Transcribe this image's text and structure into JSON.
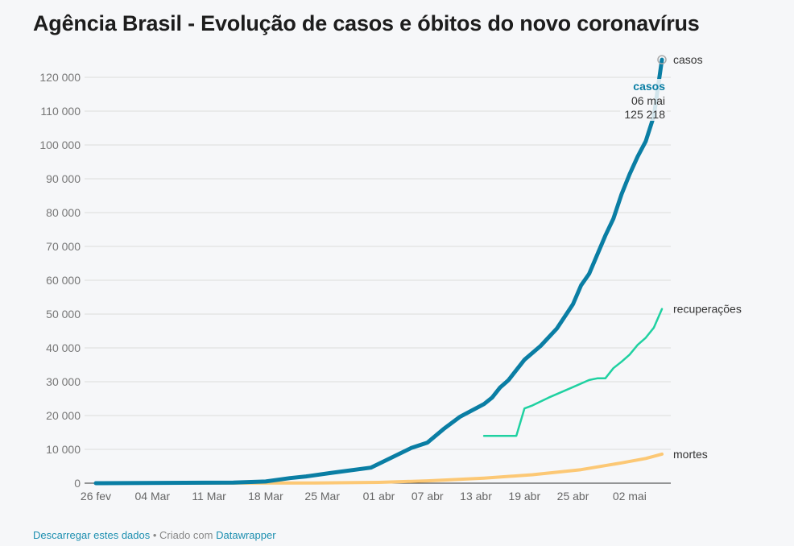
{
  "chart_data": {
    "type": "line",
    "title": "Agência Brasil - Evolução de casos e óbitos do novo coronavírus",
    "xlabel": "",
    "ylabel": "",
    "ylim": [
      0,
      120000
    ],
    "yticks": [
      0,
      10000,
      20000,
      30000,
      40000,
      50000,
      60000,
      70000,
      80000,
      90000,
      100000,
      110000,
      120000
    ],
    "ytick_labels": [
      "0",
      "10 000",
      "20 000",
      "30 000",
      "40 000",
      "50 000",
      "60 000",
      "70 000",
      "80 000",
      "90 000",
      "100 000",
      "110 000",
      "120 000"
    ],
    "xlim": [
      "2020-02-26",
      "2020-05-06"
    ],
    "xticks": [
      "2020-02-26",
      "2020-03-04",
      "2020-03-11",
      "2020-03-18",
      "2020-03-25",
      "2020-04-01",
      "2020-04-07",
      "2020-04-13",
      "2020-04-19",
      "2020-04-25",
      "2020-05-02"
    ],
    "xtick_labels": [
      "26 fev",
      "04 Mar",
      "11 Mar",
      "18 Mar",
      "25 Mar",
      "01 abr",
      "07 abr",
      "13 abr",
      "19 abr",
      "25 abr",
      "02 mai"
    ],
    "grid": true,
    "series": [
      {
        "name": "casos",
        "color": "#0a7ea4",
        "x": [
          "2020-02-26",
          "2020-03-14",
          "2020-03-18",
          "2020-03-21",
          "2020-03-23",
          "2020-03-26",
          "2020-03-31",
          "2020-04-05",
          "2020-04-07",
          "2020-04-09",
          "2020-04-11",
          "2020-04-14",
          "2020-04-15",
          "2020-04-16",
          "2020-04-17",
          "2020-04-19",
          "2020-04-21",
          "2020-04-23",
          "2020-04-25",
          "2020-04-26",
          "2020-04-27",
          "2020-04-29",
          "2020-04-30",
          "2020-05-01",
          "2020-05-02",
          "2020-05-03",
          "2020-05-04",
          "2020-05-05",
          "2020-05-06"
        ],
        "y": [
          0,
          200,
          500,
          1500,
          2000,
          3000,
          4600,
          10400,
          12000,
          16000,
          19600,
          23400,
          25300,
          28300,
          30400,
          36500,
          40600,
          45700,
          52900,
          58500,
          61900,
          73200,
          78200,
          85400,
          91300,
          96600,
          101100,
          108600,
          125218
        ]
      },
      {
        "name": "recuperações",
        "color": "#1fd1a1",
        "x": [
          "2020-04-14",
          "2020-04-18",
          "2020-04-19",
          "2020-04-20",
          "2020-04-22",
          "2020-04-25",
          "2020-04-27",
          "2020-04-28",
          "2020-04-29",
          "2020-04-30",
          "2020-05-01",
          "2020-05-02",
          "2020-05-03",
          "2020-05-04",
          "2020-05-05",
          "2020-05-06"
        ],
        "y": [
          14000,
          14000,
          22100,
          23000,
          25300,
          28400,
          30500,
          31000,
          31000,
          34000,
          35900,
          38000,
          40900,
          43000,
          46000,
          51500
        ]
      },
      {
        "name": "mortes",
        "color": "#fcc875",
        "x": [
          "2020-02-26",
          "2020-03-24",
          "2020-04-01",
          "2020-04-07",
          "2020-04-14",
          "2020-04-20",
          "2020-04-26",
          "2020-05-01",
          "2020-05-04",
          "2020-05-06"
        ],
        "y": [
          0,
          50,
          250,
          700,
          1500,
          2500,
          4000,
          6000,
          7300,
          8588
        ]
      }
    ],
    "tooltip": {
      "series": "casos",
      "date": "06 mai",
      "value": "125 218"
    }
  },
  "footer": {
    "download": "Descarregar estes dados",
    "sep": " • Criado com ",
    "brand": "Datawrapper"
  }
}
